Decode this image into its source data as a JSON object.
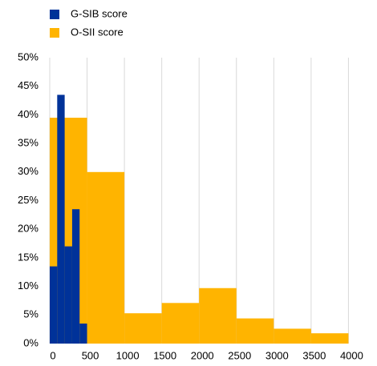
{
  "chart_data": {
    "type": "histogram",
    "series": [
      {
        "name": "G-SIB score",
        "color": "#003299",
        "bins": [
          0,
          100,
          200,
          300,
          400,
          500
        ],
        "values": [
          13.5,
          43.5,
          17,
          23.5,
          3.5
        ]
      },
      {
        "name": "O-SII score",
        "color": "#ffb400",
        "bins": [
          0,
          500,
          1000,
          1500,
          2000,
          2500,
          3000,
          3500,
          4000
        ],
        "values": [
          39.5,
          30,
          5.3,
          7.1,
          9.7,
          4.4,
          2.6,
          1.8
        ]
      }
    ],
    "xlim": [
      0,
      4350
    ],
    "xticks": [
      0,
      500,
      1000,
      1500,
      2000,
      2500,
      3000,
      3500,
      4000
    ],
    "ylim": [
      0,
      50
    ],
    "yticks": [
      {
        "value": 0,
        "label": "0%"
      },
      {
        "value": 5,
        "label": "5%"
      },
      {
        "value": 10,
        "label": "10%"
      },
      {
        "value": 15,
        "label": "15%"
      },
      {
        "value": 20,
        "label": "20%"
      },
      {
        "value": 25,
        "label": "25%"
      },
      {
        "value": 30,
        "label": "30%"
      },
      {
        "value": 35,
        "label": "35%"
      },
      {
        "value": 40,
        "label": "40%"
      },
      {
        "value": 45,
        "label": "45%"
      },
      {
        "value": 50,
        "label": "50%"
      }
    ],
    "grid": "x",
    "legend": "top-left"
  }
}
